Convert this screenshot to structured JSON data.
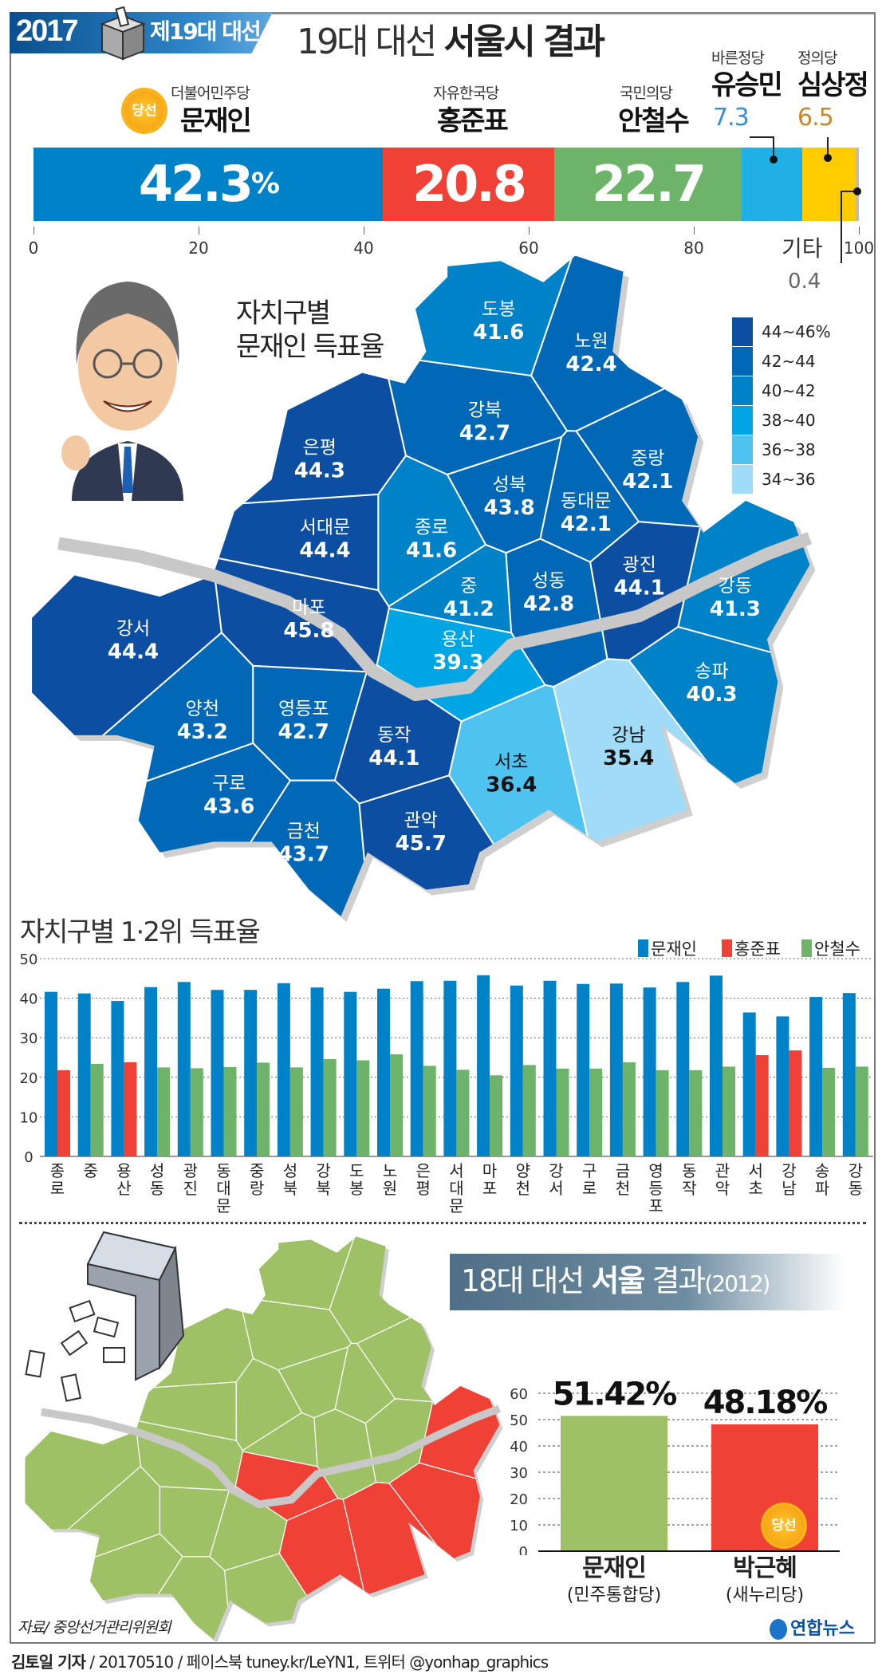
{
  "header": {
    "year": "2017",
    "election": "제19대 대선",
    "title_light": "19대 대선",
    "title_bold": "서울시 결과"
  },
  "winner_badge": "당선",
  "candidates": [
    {
      "party": "더불어민주당",
      "name": "문재인",
      "value": 42.3,
      "label": "42.3",
      "unit": "%",
      "color": "#0082c8"
    },
    {
      "party": "자유한국당",
      "name": "홍준표",
      "value": 20.8,
      "label": "20.8",
      "color": "#ef4136"
    },
    {
      "party": "국민의당",
      "name": "안철수",
      "value": 22.7,
      "label": "22.7",
      "color": "#6db36a"
    },
    {
      "party": "바른정당",
      "name": "유승민",
      "value": 7.3,
      "label": "7.3",
      "color": "#1fb1e6",
      "label_color": "#3a8fd0"
    },
    {
      "party": "정의당",
      "name": "심상정",
      "value": 6.5,
      "label": "6.5",
      "color": "#ffcc00",
      "label_color": "#c9862a"
    },
    {
      "name": "기타",
      "value": 0.4,
      "label": "0.4",
      "color": "#bbbbbb"
    }
  ],
  "axis_ticks": [
    "0",
    "20",
    "40",
    "60",
    "80",
    "100"
  ],
  "map": {
    "title_line1": "자치구별",
    "title_line2": "문재인 득표율",
    "legend": [
      {
        "label": "44~46%",
        "min": 44,
        "color": "#0c4ea2"
      },
      {
        "label": "42~44",
        "min": 42,
        "color": "#0068b7"
      },
      {
        "label": "40~42",
        "min": 40,
        "color": "#0082c8"
      },
      {
        "label": "38~40",
        "min": 38,
        "color": "#00a6e3"
      },
      {
        "label": "36~38",
        "min": 36,
        "color": "#4fc3ef"
      },
      {
        "label": "34~36",
        "min": 34,
        "color": "#a0dcf7"
      }
    ],
    "districts": [
      {
        "name": "도봉",
        "moon": 41.6,
        "winner_2012": "문재인"
      },
      {
        "name": "노원",
        "moon": 42.4,
        "winner_2012": "문재인"
      },
      {
        "name": "강북",
        "moon": 42.7,
        "winner_2012": "문재인"
      },
      {
        "name": "은평",
        "moon": 44.3,
        "winner_2012": "문재인"
      },
      {
        "name": "성북",
        "moon": 43.8,
        "winner_2012": "문재인"
      },
      {
        "name": "중랑",
        "moon": 42.1,
        "winner_2012": "문재인"
      },
      {
        "name": "동대문",
        "moon": 42.1,
        "winner_2012": "문재인"
      },
      {
        "name": "종로",
        "moon": 41.6,
        "winner_2012": "문재인"
      },
      {
        "name": "서대문",
        "moon": 44.4,
        "winner_2012": "문재인"
      },
      {
        "name": "중",
        "moon": 41.2,
        "winner_2012": "문재인"
      },
      {
        "name": "성동",
        "moon": 42.8,
        "winner_2012": "문재인"
      },
      {
        "name": "광진",
        "moon": 44.1,
        "winner_2012": "문재인"
      },
      {
        "name": "강동",
        "moon": 41.3,
        "winner_2012": "박근혜"
      },
      {
        "name": "마포",
        "moon": 45.8,
        "winner_2012": "문재인"
      },
      {
        "name": "용산",
        "moon": 39.3,
        "winner_2012": "박근혜"
      },
      {
        "name": "강서",
        "moon": 44.4,
        "winner_2012": "문재인"
      },
      {
        "name": "양천",
        "moon": 43.2,
        "winner_2012": "문재인"
      },
      {
        "name": "영등포",
        "moon": 42.7,
        "winner_2012": "문재인"
      },
      {
        "name": "동작",
        "moon": 44.1,
        "winner_2012": "문재인"
      },
      {
        "name": "서초",
        "moon": 36.4,
        "winner_2012": "박근혜"
      },
      {
        "name": "강남",
        "moon": 35.4,
        "winner_2012": "박근혜"
      },
      {
        "name": "송파",
        "moon": 40.3,
        "winner_2012": "박근혜"
      },
      {
        "name": "구로",
        "moon": 43.6,
        "winner_2012": "문재인"
      },
      {
        "name": "금천",
        "moon": 43.7,
        "winner_2012": "문재인"
      },
      {
        "name": "관악",
        "moon": 45.7,
        "winner_2012": "문재인"
      }
    ],
    "map_2012_colors": {
      "문재인": "#9fc165",
      "박근혜": "#ef4136"
    }
  },
  "chart_data": [
    {
      "type": "bar",
      "title": "자치구별 1·2위 득표율",
      "categories": [
        "종로",
        "중",
        "용산",
        "성동",
        "광진",
        "동대문",
        "중랑",
        "성북",
        "강북",
        "도봉",
        "노원",
        "은평",
        "서대문",
        "마포",
        "양천",
        "강서",
        "구로",
        "금천",
        "영등포",
        "동작",
        "관악",
        "서초",
        "강남",
        "송파",
        "강동"
      ],
      "series": [
        {
          "name": "문재인",
          "color": "#0082c8",
          "values": [
            41.6,
            41.2,
            39.3,
            42.8,
            44.1,
            42.1,
            42.1,
            43.8,
            42.7,
            41.6,
            42.4,
            44.3,
            44.4,
            45.8,
            43.2,
            44.4,
            43.6,
            43.7,
            42.7,
            44.1,
            45.7,
            36.4,
            35.4,
            40.3,
            41.3
          ]
        },
        {
          "name": "홍준표",
          "color": "#ef4136",
          "values": [
            21.8,
            null,
            23.8,
            null,
            null,
            null,
            null,
            null,
            null,
            null,
            null,
            null,
            null,
            null,
            null,
            null,
            null,
            null,
            null,
            null,
            null,
            25.6,
            26.8,
            null,
            null
          ]
        },
        {
          "name": "안철수",
          "color": "#6db36a",
          "values": [
            null,
            23.4,
            null,
            22.5,
            22.3,
            22.6,
            23.7,
            22.5,
            24.6,
            24.3,
            25.8,
            22.9,
            21.9,
            20.5,
            23.1,
            22.2,
            22.2,
            23.8,
            21.8,
            21.8,
            22.7,
            null,
            null,
            22.4,
            22.7
          ]
        }
      ],
      "ylim": [
        0,
        50
      ],
      "yticks": [
        "0",
        "10",
        "20",
        "30",
        "40",
        "50"
      ],
      "grid": true,
      "legend": "top-right"
    },
    {
      "type": "bar",
      "title_light": "18대 대선",
      "title_bold": "서울",
      "title_rest": "결과",
      "title_year": "(2012)",
      "categories": [
        "문재인",
        "박근혜"
      ],
      "parties": [
        "(민주통합당)",
        "(새누리당)"
      ],
      "values": [
        51.42,
        48.18
      ],
      "value_labels": [
        "51.42%",
        "48.18%"
      ],
      "colors": [
        "#9fc165",
        "#ef4136"
      ],
      "winner": "박근혜",
      "ylim": [
        0,
        60
      ],
      "yticks": [
        "0",
        "10",
        "20",
        "30",
        "40",
        "50",
        "60"
      ],
      "grid": true
    }
  ],
  "footer": {
    "source": "자료/ 중앙선거관리위원회",
    "logo": "연합뉴스",
    "credit_bold": "김토일 기자",
    "credit_rest": " / 20170510 / 페이스북 tuney.kr/LeYN1, 트위터 @yonhap_graphics"
  }
}
